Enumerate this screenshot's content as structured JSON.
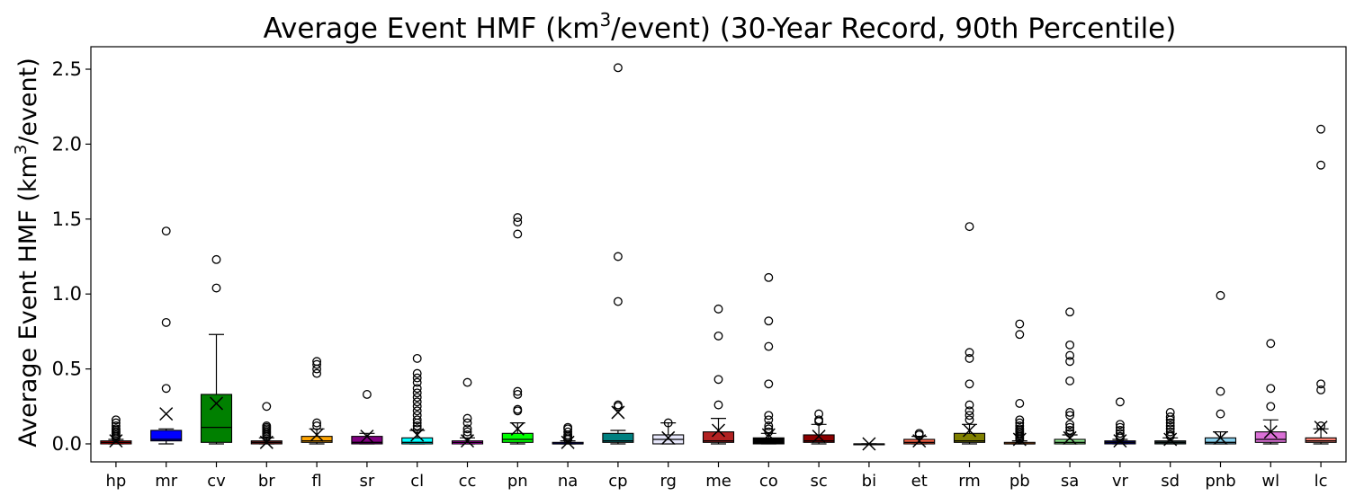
{
  "chart_data": {
    "type": "box",
    "title": "Average Event HMF (km³/event) (30-Year Record, 90th Percentile)",
    "title_parts": {
      "before": "Average Event HMF (km",
      "sup": "3",
      "after": "/event) (30-Year Record, 90th Percentile)"
    },
    "ylabel": "Average Event HMF (km³/event)",
    "ylabel_parts": {
      "before": "Average Event HMF (km",
      "sup": "3",
      "after": "/event)"
    },
    "xlabel": "",
    "ylim": [
      -0.12,
      2.65
    ],
    "yticks": [
      0.0,
      0.5,
      1.0,
      1.5,
      2.0,
      2.5
    ],
    "ytick_labels": [
      "0.0",
      "0.5",
      "1.0",
      "1.5",
      "2.0",
      "2.5"
    ],
    "grid": false,
    "mean_marker": "x",
    "categories": [
      "hp",
      "mr",
      "cv",
      "br",
      "fl",
      "sr",
      "cl",
      "cc",
      "pn",
      "na",
      "cp",
      "rg",
      "me",
      "co",
      "sc",
      "bi",
      "et",
      "rm",
      "pb",
      "sa",
      "vr",
      "sd",
      "pnb",
      "wl",
      "lc"
    ],
    "boxes": [
      {
        "label": "hp",
        "color": "#ff0000",
        "q1": 0.0,
        "median": 0.01,
        "q3": 0.02,
        "whisker_low": 0.0,
        "whisker_high": 0.03,
        "mean": 0.02,
        "outliers": [
          0.04,
          0.05,
          0.06,
          0.07,
          0.08,
          0.09,
          0.1,
          0.12,
          0.14,
          0.16
        ]
      },
      {
        "label": "mr",
        "color": "#0000ff",
        "q1": 0.02,
        "median": 0.03,
        "q3": 0.09,
        "whisker_low": 0.0,
        "whisker_high": 0.1,
        "mean": 0.2,
        "outliers": [
          0.37,
          0.81,
          1.42
        ]
      },
      {
        "label": "cv",
        "color": "#008000",
        "q1": 0.01,
        "median": 0.11,
        "q3": 0.33,
        "whisker_low": 0.0,
        "whisker_high": 0.73,
        "mean": 0.27,
        "outliers": [
          1.04,
          1.23
        ]
      },
      {
        "label": "br",
        "color": "#a52a2a",
        "q1": 0.0,
        "median": 0.01,
        "q3": 0.02,
        "whisker_low": 0.0,
        "whisker_high": 0.04,
        "mean": 0.01,
        "outliers": [
          0.05,
          0.06,
          0.07,
          0.08,
          0.09,
          0.1,
          0.11,
          0.12,
          0.25
        ]
      },
      {
        "label": "fl",
        "color": "#ffa500",
        "q1": 0.01,
        "median": 0.02,
        "q3": 0.05,
        "whisker_low": 0.0,
        "whisker_high": 0.1,
        "mean": 0.06,
        "outliers": [
          0.12,
          0.14,
          0.47,
          0.5,
          0.53,
          0.55
        ]
      },
      {
        "label": "sr",
        "color": "#800080",
        "q1": 0.0,
        "median": 0.01,
        "q3": 0.05,
        "whisker_low": 0.0,
        "whisker_high": 0.07,
        "mean": 0.05,
        "outliers": [
          0.33
        ]
      },
      {
        "label": "cl",
        "color": "#00ffff",
        "q1": 0.0,
        "median": 0.01,
        "q3": 0.04,
        "whisker_low": 0.0,
        "whisker_high": 0.09,
        "mean": 0.06,
        "outliers": [
          0.1,
          0.12,
          0.14,
          0.16,
          0.19,
          0.22,
          0.25,
          0.28,
          0.31,
          0.34,
          0.37,
          0.41,
          0.44,
          0.47,
          0.57
        ]
      },
      {
        "label": "cc",
        "color": "#ff00ff",
        "q1": 0.0,
        "median": 0.01,
        "q3": 0.02,
        "whisker_low": 0.0,
        "whisker_high": 0.04,
        "mean": 0.02,
        "outliers": [
          0.06,
          0.08,
          0.1,
          0.14,
          0.17,
          0.41
        ]
      },
      {
        "label": "pn",
        "color": "#00ff00",
        "q1": 0.01,
        "median": 0.03,
        "q3": 0.07,
        "whisker_low": 0.0,
        "whisker_high": 0.14,
        "mean": 0.1,
        "outliers": [
          0.22,
          0.23,
          0.33,
          0.35,
          1.4,
          1.48,
          1.51
        ]
      },
      {
        "label": "na",
        "color": "#000080",
        "q1": 0.0,
        "median": 0.0,
        "q3": 0.01,
        "whisker_low": 0.0,
        "whisker_high": 0.02,
        "mean": 0.01,
        "outliers": [
          0.03,
          0.04,
          0.05,
          0.06,
          0.08,
          0.1,
          0.11
        ]
      },
      {
        "label": "cp",
        "color": "#008080",
        "q1": 0.01,
        "median": 0.02,
        "q3": 0.07,
        "whisker_low": 0.0,
        "whisker_high": 0.09,
        "mean": 0.21,
        "outliers": [
          0.25,
          0.26,
          0.95,
          1.25,
          2.51
        ]
      },
      {
        "label": "rg",
        "color": "#e6e6fa",
        "q1": 0.0,
        "median": 0.03,
        "q3": 0.06,
        "whisker_low": 0.0,
        "whisker_high": 0.14,
        "mean": 0.04,
        "outliers": [
          0.14
        ]
      },
      {
        "label": "me",
        "color": "#b22222",
        "q1": 0.01,
        "median": 0.02,
        "q3": 0.08,
        "whisker_low": 0.0,
        "whisker_high": 0.17,
        "mean": 0.09,
        "outliers": [
          0.26,
          0.43,
          0.72,
          0.9
        ]
      },
      {
        "label": "co",
        "color": "#000000",
        "q1": 0.0,
        "median": 0.01,
        "q3": 0.04,
        "whisker_low": 0.0,
        "whisker_high": 0.07,
        "mean": 0.06,
        "outliers": [
          0.08,
          0.1,
          0.12,
          0.16,
          0.19,
          0.4,
          0.65,
          0.82,
          1.11
        ]
      },
      {
        "label": "sc",
        "color": "#8b0000",
        "q1": 0.01,
        "median": 0.02,
        "q3": 0.06,
        "whisker_low": 0.0,
        "whisker_high": 0.13,
        "mean": 0.05,
        "outliers": [
          0.15,
          0.16,
          0.2
        ]
      },
      {
        "label": "bi",
        "color": "#4b0082",
        "q1": 0.0,
        "median": 0.0,
        "q3": 0.0,
        "whisker_low": 0.0,
        "whisker_high": 0.0,
        "mean": 0.0,
        "outliers": []
      },
      {
        "label": "et",
        "color": "#ff6347",
        "q1": 0.0,
        "median": 0.01,
        "q3": 0.03,
        "whisker_low": 0.0,
        "whisker_high": 0.05,
        "mean": 0.02,
        "outliers": [
          0.06,
          0.07
        ]
      },
      {
        "label": "rm",
        "color": "#808000",
        "q1": 0.01,
        "median": 0.02,
        "q3": 0.07,
        "whisker_low": 0.0,
        "whisker_high": 0.13,
        "mean": 0.09,
        "outliers": [
          0.16,
          0.19,
          0.22,
          0.26,
          0.4,
          0.57,
          0.61,
          1.45
        ]
      },
      {
        "label": "pb",
        "color": "#d2691e",
        "q1": 0.0,
        "median": 0.0,
        "q3": 0.01,
        "whisker_low": 0.0,
        "whisker_high": 0.02,
        "mean": 0.03,
        "outliers": [
          0.03,
          0.04,
          0.05,
          0.06,
          0.07,
          0.08,
          0.09,
          0.1,
          0.12,
          0.14,
          0.16,
          0.27,
          0.73,
          0.8
        ]
      },
      {
        "label": "sa",
        "color": "#90ee90",
        "q1": 0.0,
        "median": 0.01,
        "q3": 0.03,
        "whisker_low": 0.0,
        "whisker_high": 0.06,
        "mean": 0.04,
        "outliers": [
          0.07,
          0.09,
          0.11,
          0.13,
          0.19,
          0.21,
          0.42,
          0.55,
          0.59,
          0.66,
          0.88
        ]
      },
      {
        "label": "vr",
        "color": "#00008b",
        "q1": 0.0,
        "median": 0.01,
        "q3": 0.02,
        "whisker_low": 0.0,
        "whisker_high": 0.03,
        "mean": 0.02,
        "outliers": [
          0.04,
          0.05,
          0.07,
          0.09,
          0.11,
          0.13,
          0.28
        ]
      },
      {
        "label": "sd",
        "color": "#2f4f4f",
        "q1": 0.0,
        "median": 0.01,
        "q3": 0.02,
        "whisker_low": 0.0,
        "whisker_high": 0.04,
        "mean": 0.03,
        "outliers": [
          0.05,
          0.06,
          0.08,
          0.1,
          0.12,
          0.14,
          0.16,
          0.18,
          0.21
        ]
      },
      {
        "label": "pnb",
        "color": "#87ceeb",
        "q1": 0.0,
        "median": 0.01,
        "q3": 0.04,
        "whisker_low": 0.0,
        "whisker_high": 0.08,
        "mean": 0.04,
        "outliers": [
          0.2,
          0.35,
          0.99
        ]
      },
      {
        "label": "wl",
        "color": "#da70d6",
        "q1": 0.01,
        "median": 0.03,
        "q3": 0.08,
        "whisker_low": 0.0,
        "whisker_high": 0.16,
        "mean": 0.08,
        "outliers": [
          0.25,
          0.37,
          0.67
        ]
      },
      {
        "label": "lc",
        "color": "#fa8072",
        "q1": 0.01,
        "median": 0.02,
        "q3": 0.04,
        "whisker_low": 0.0,
        "whisker_high": 0.1,
        "mean": 0.11,
        "outliers": [
          0.12,
          0.36,
          0.4,
          1.86,
          2.1
        ]
      }
    ]
  }
}
